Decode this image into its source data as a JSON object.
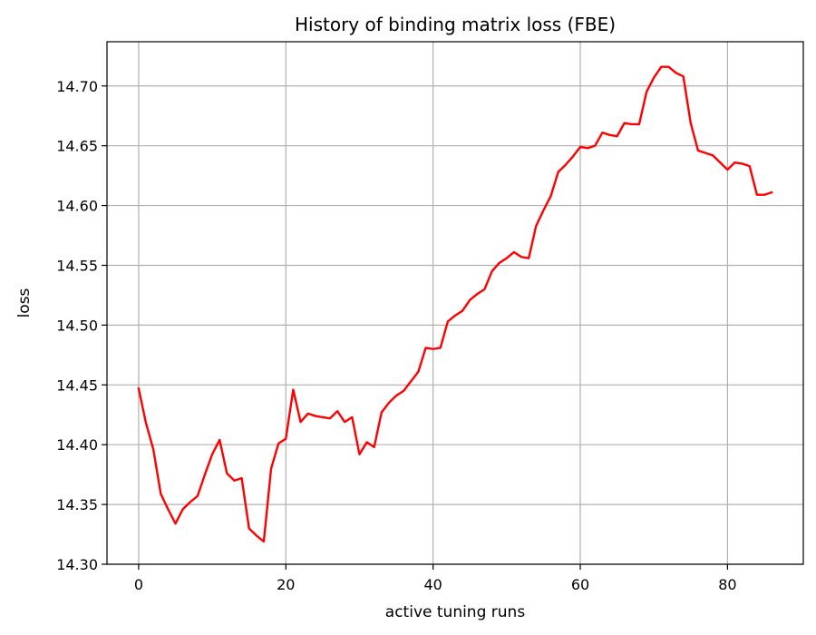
{
  "chart_data": {
    "type": "line",
    "title": "History of binding matrix loss (FBE)",
    "xlabel": "active tuning runs",
    "ylabel": "loss",
    "xlim": [
      -4.3,
      90.3
    ],
    "ylim": [
      14.3,
      14.737
    ],
    "xticks": [
      0,
      20,
      40,
      60,
      80
    ],
    "yticks": [
      14.3,
      14.35,
      14.4,
      14.45,
      14.5,
      14.55,
      14.6,
      14.65,
      14.7
    ],
    "ytick_labels": [
      "14.30",
      "14.35",
      "14.40",
      "14.45",
      "14.50",
      "14.55",
      "14.60",
      "14.65",
      "14.70"
    ],
    "grid": true,
    "series": [
      {
        "color": "#ff0000",
        "x": [
          0,
          1,
          2,
          3,
          4,
          5,
          6,
          7,
          8,
          9,
          10,
          11,
          12,
          13,
          14,
          15,
          16,
          17,
          18,
          19,
          20,
          21,
          22,
          23,
          24,
          25,
          26,
          27,
          28,
          29,
          30,
          31,
          32,
          33,
          34,
          35,
          36,
          37,
          38,
          39,
          40,
          41,
          42,
          43,
          44,
          45,
          46,
          47,
          48,
          49,
          50,
          51,
          52,
          53,
          54,
          55,
          56,
          57,
          58,
          59,
          60,
          61,
          62,
          63,
          64,
          65,
          66,
          67,
          68,
          69,
          70,
          71,
          72,
          73,
          74,
          75,
          76,
          77,
          78,
          79,
          80,
          81,
          82,
          83,
          84,
          85,
          86
        ],
        "y": [
          14.447,
          14.418,
          14.396,
          14.359,
          14.346,
          14.334,
          14.346,
          14.352,
          14.357,
          14.375,
          14.392,
          14.404,
          14.376,
          14.37,
          14.372,
          14.33,
          14.324,
          14.319,
          14.38,
          14.401,
          14.405,
          14.446,
          14.419,
          14.426,
          14.424,
          14.423,
          14.422,
          14.428,
          14.419,
          14.423,
          14.392,
          14.402,
          14.398,
          14.427,
          14.435,
          14.441,
          14.445,
          14.453,
          14.461,
          14.481,
          14.48,
          14.481,
          14.503,
          14.508,
          14.512,
          14.521,
          14.526,
          14.53,
          14.545,
          14.552,
          14.556,
          14.561,
          14.557,
          14.556,
          14.583,
          14.596,
          14.608,
          14.628,
          14.634,
          14.641,
          14.649,
          14.648,
          14.65,
          14.661,
          14.659,
          14.658,
          14.669,
          14.668,
          14.668,
          14.695,
          14.707,
          14.716,
          14.716,
          14.711,
          14.708,
          14.669,
          14.646,
          14.644,
          14.642,
          14.636,
          14.63,
          14.636,
          14.635,
          14.633,
          14.609,
          14.609,
          14.611
        ]
      }
    ]
  }
}
